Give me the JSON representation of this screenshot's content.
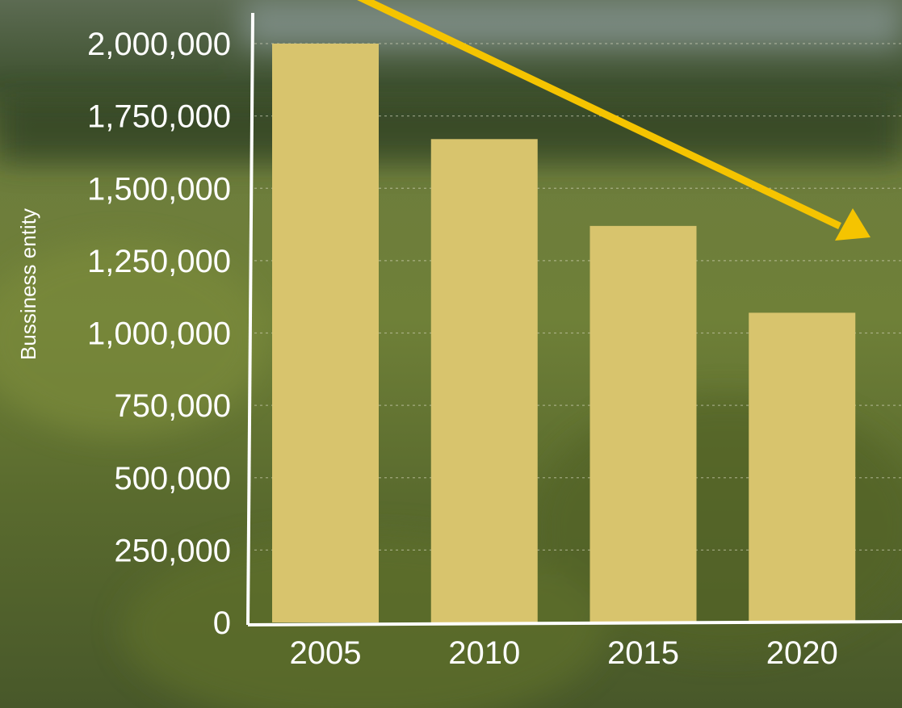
{
  "chart_data": {
    "type": "bar",
    "title": "",
    "xlabel": "",
    "ylabel": "Bussiness entity",
    "categories": [
      "2005",
      "2010",
      "2015",
      "2020"
    ],
    "values": [
      2000000,
      1670000,
      1370000,
      1070000
    ],
    "ylim": [
      0,
      2000000
    ],
    "yticks": [
      0,
      250000,
      500000,
      750000,
      1000000,
      1250000,
      1500000,
      1750000,
      2000000
    ],
    "ytick_labels": [
      "0",
      "250,000",
      "500,000",
      "750,000",
      "1,000,000",
      "1,250,000",
      "1,500,000",
      "1,750,000",
      "2,000,000"
    ],
    "grid": true,
    "legend": "none",
    "annotation": "downward trend arrow",
    "colors": {
      "bar": "#d8c46d",
      "arrow": "#f5c400",
      "axis": "#ffffff",
      "gridline": "#d8d8c0"
    }
  }
}
